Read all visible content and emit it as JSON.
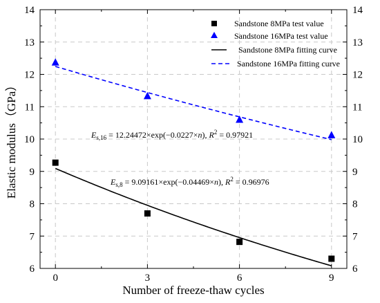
{
  "chart_data": {
    "type": "scatter",
    "title": "",
    "xlabel": "Number of freeze-thaw cycles",
    "ylabel": "Elastic modulus（GPa）",
    "xlim": [
      -0.5,
      9.5
    ],
    "ylim": [
      6,
      14
    ],
    "x_ticks": [
      "0",
      "3",
      "6",
      "9"
    ],
    "y_ticks": [
      "6",
      "7",
      "8",
      "9",
      "10",
      "11",
      "12",
      "13",
      "14"
    ],
    "grid": true,
    "legend_position": "top-right",
    "series": [
      {
        "name": "Sandstone 8MPa test value",
        "kind": "scatter",
        "marker": "square",
        "color": "#000000",
        "x": [
          0,
          3,
          6,
          9
        ],
        "y": [
          9.27,
          7.7,
          6.82,
          6.3
        ]
      },
      {
        "name": "Sandstone 16MPa test value",
        "kind": "scatter",
        "marker": "triangle",
        "color": "#0000ff",
        "x": [
          0,
          3,
          6,
          9
        ],
        "y": [
          12.37,
          11.33,
          10.6,
          10.12
        ]
      },
      {
        "name": "Sandstone 8MPa fitting curve",
        "kind": "line",
        "style": "solid",
        "color": "#000000",
        "coef_a": 9.09161,
        "coef_b": -0.04469,
        "x_range": [
          0,
          9
        ]
      },
      {
        "name": "Sandstone 16MPa fitting curve",
        "kind": "line",
        "style": "dashed",
        "color": "#0000ff",
        "coef_a": 12.24472,
        "coef_b": -0.0227,
        "x_range": [
          0,
          9
        ]
      }
    ],
    "annotations": [
      {
        "id": "eq16",
        "sym": "E",
        "sub": "s,16",
        "body": " = 12.24472×exp(−0.0227×",
        "var": "n",
        "close": "), ",
        "r": "R",
        "sup": "2",
        "tail": " = 0.97921"
      },
      {
        "id": "eq8",
        "sym": "E",
        "sub": "s,8",
        "body": " = 9.09161×exp(−0.04469×",
        "var": "n",
        "close": "), ",
        "r": "R",
        "sup": "2",
        "tail": " = 0.96976"
      }
    ]
  }
}
